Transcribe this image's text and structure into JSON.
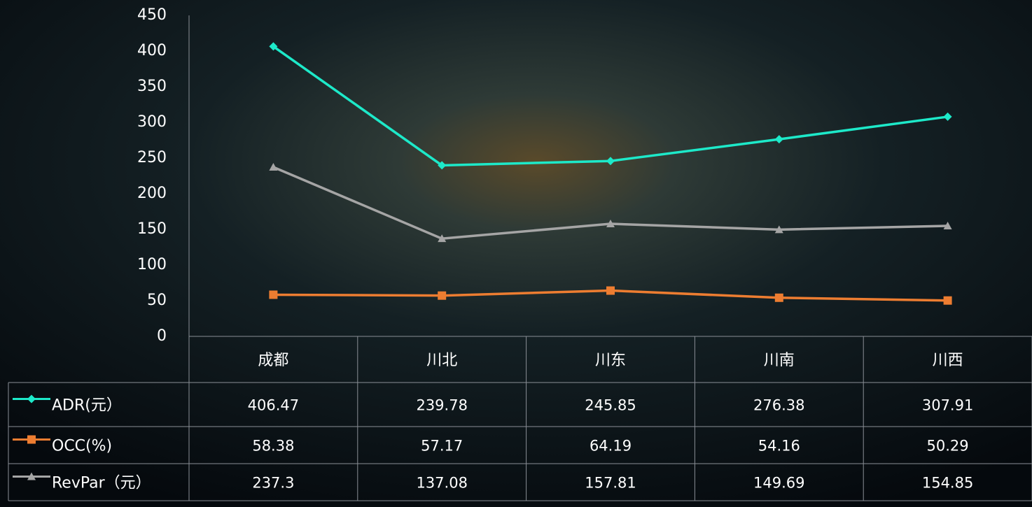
{
  "chart_data": {
    "type": "line",
    "categories": [
      "成都",
      "川北",
      "川东",
      "川南",
      "川西"
    ],
    "series": [
      {
        "name": "ADR(元）",
        "color": "#1de9c9",
        "marker": "diamond",
        "values": [
          406.47,
          239.78,
          245.85,
          276.38,
          307.91
        ]
      },
      {
        "name": "OCC(%)",
        "color": "#ed7d31",
        "marker": "square",
        "values": [
          58.38,
          57.17,
          64.19,
          54.16,
          50.29
        ]
      },
      {
        "name": "RevPar（元）",
        "color": "#a5a5a5",
        "marker": "triangle",
        "values": [
          237.3,
          137.08,
          157.81,
          149.69,
          154.85
        ]
      }
    ],
    "ylim": [
      0,
      450
    ],
    "yticks": [
      0,
      50,
      100,
      150,
      200,
      250,
      300,
      350,
      400,
      450
    ]
  }
}
